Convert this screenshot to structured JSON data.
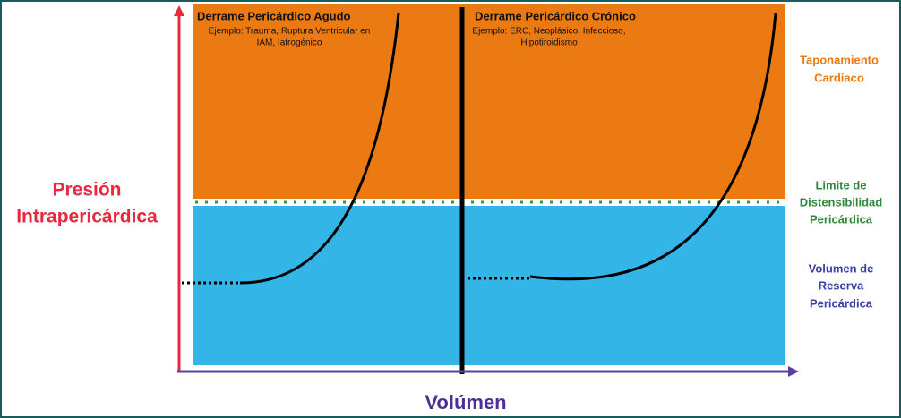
{
  "y_axis_label": [
    "Presión",
    "Intrapericárdica"
  ],
  "x_axis_label": "Volúmen",
  "panels": [
    {
      "title": "Derrame Pericárdico Agudo",
      "example": [
        "Ejemplo: Trauma, Ruptura Ventricular en",
        "IAM, Iatrogénico"
      ]
    },
    {
      "title": "Derrame Pericárdico Crónico",
      "example": [
        "Ejemplo: ERC, Neoplásico, Infeccioso,",
        "Hipotiroidismo"
      ]
    }
  ],
  "zones": [
    {
      "label": [
        "Taponamiento",
        "Cardiaco"
      ]
    },
    {
      "label": [
        "Limite de",
        "Distensibilidad",
        "Pericárdica"
      ]
    },
    {
      "label": [
        "Volumen de",
        "Reserva",
        "Pericárdica"
      ]
    }
  ]
}
